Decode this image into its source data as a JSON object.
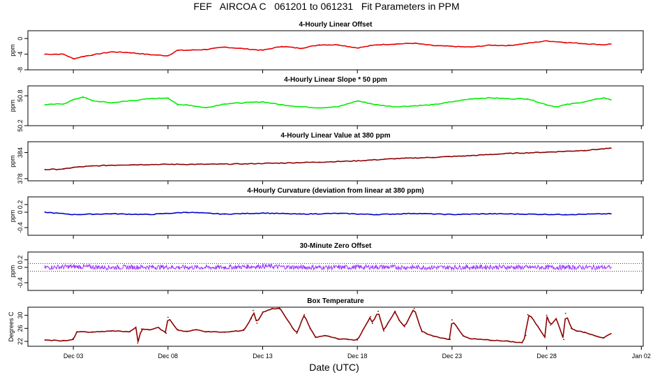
{
  "figure_title": "FEF   AIRCOA C   061201 to 061231   Fit Parameters in PPM",
  "xlabel": "Date (UTC)",
  "x_tick_labels": [
    "Dec 03",
    "Dec 08",
    "Dec 13",
    "Dec 18",
    "Dec 23",
    "Dec 28",
    "Jan 02"
  ],
  "colors": {
    "offset": "#e60000",
    "slope": "#00ee00",
    "value": "#8b0000",
    "curvature": "#0000cc",
    "zero": "#9933ff",
    "temp": "#8b0000"
  },
  "chart_data": [
    {
      "type": "line",
      "title": "4-Hourly Linear Offset",
      "ylabel": "ppm",
      "ylim": [
        -8,
        2
      ],
      "yticks": [
        -8,
        -4,
        0
      ],
      "ytick_labels": [
        "-8",
        "-4",
        "0"
      ],
      "x": [
        "Dec 01.5",
        "Dec 02.5",
        "Dec 03",
        "Dec 03.5",
        "Dec 04",
        "Dec 05",
        "Dec 06",
        "Dec 07",
        "Dec 08",
        "Dec 08.5",
        "Dec 09",
        "Dec 10",
        "Dec 11",
        "Dec 12",
        "Dec 13",
        "Dec 14",
        "Dec 15",
        "Dec 16",
        "Dec 17",
        "Dec 18",
        "Dec 19",
        "Dec 20",
        "Dec 21",
        "Dec 22",
        "Dec 23",
        "Dec 24",
        "Dec 25",
        "Dec 26",
        "Dec 27",
        "Dec 28",
        "Dec 29",
        "Dec 30",
        "Dec 31",
        "Dec 31.4"
      ],
      "xn": [
        1.5,
        2.5,
        3,
        3.5,
        4,
        5,
        6,
        7,
        8,
        8.5,
        9,
        10,
        11,
        12,
        13,
        14,
        15,
        16,
        17,
        18,
        19,
        20,
        21,
        22,
        23,
        24,
        25,
        26,
        27,
        28,
        29,
        30,
        31,
        31.4
      ],
      "y": [
        -4.0,
        -4.0,
        -5.2,
        -4.6,
        -4.2,
        -3.4,
        -3.6,
        -4.1,
        -4.4,
        -3.0,
        -3.0,
        -2.8,
        -2.2,
        -2.6,
        -3.0,
        -2.0,
        -2.5,
        -1.6,
        -1.6,
        -2.4,
        -1.6,
        -1.4,
        -1.2,
        -1.8,
        -2.0,
        -2.2,
        -1.7,
        -1.8,
        -1.2,
        -0.6,
        -1.0,
        -1.3,
        -1.6,
        -1.4
      ],
      "color_key": "offset"
    },
    {
      "type": "line",
      "title": "4-Hourly Linear Slope * 50 ppm",
      "ylabel": "ppm",
      "ylim": [
        50.2,
        51.0
      ],
      "yticks": [
        50.2,
        50.8
      ],
      "ytick_labels": [
        "50.2",
        "50.8"
      ],
      "xn": [
        1.5,
        2.5,
        3,
        3.5,
        4,
        5,
        6,
        7,
        8,
        8.5,
        9,
        10,
        11,
        12,
        13,
        14,
        15,
        16,
        17,
        18,
        19,
        20,
        21,
        22,
        23,
        24,
        25,
        26,
        27,
        28,
        28.5,
        29,
        30,
        31,
        31.4
      ],
      "y": [
        50.62,
        50.64,
        50.72,
        50.78,
        50.7,
        50.66,
        50.7,
        50.74,
        50.76,
        50.62,
        50.62,
        50.56,
        50.64,
        50.66,
        50.68,
        50.62,
        50.58,
        50.56,
        50.58,
        50.7,
        50.62,
        50.58,
        50.6,
        50.62,
        50.68,
        50.74,
        50.76,
        50.74,
        50.74,
        50.62,
        50.58,
        50.62,
        50.68,
        50.76,
        50.72
      ],
      "color_key": "slope"
    },
    {
      "type": "line",
      "title": "4-Hourly Linear Value at 380 ppm",
      "ylabel": "ppm",
      "ylim": [
        377.5,
        386.5
      ],
      "yticks": [
        378,
        384
      ],
      "ytick_labels": [
        "378",
        "384"
      ],
      "xn": [
        1.5,
        2.5,
        3,
        4,
        5,
        6,
        8,
        10,
        12,
        14,
        16,
        18,
        20,
        22,
        24,
        26,
        28,
        30,
        31.4
      ],
      "y": [
        380.1,
        380.2,
        380.6,
        380.9,
        381.1,
        381.2,
        381.3,
        381.3,
        381.4,
        381.6,
        381.8,
        382.1,
        382.6,
        382.9,
        383.3,
        383.8,
        384.1,
        384.5,
        385.0
      ],
      "color_key": "value"
    },
    {
      "type": "line",
      "title": "4-Hourly Curvature (deviation from linear at 380 ppm)",
      "ylabel": "ppm",
      "ylim": [
        -0.6,
        0.4
      ],
      "yticks": [
        -0.4,
        0,
        0.2
      ],
      "ytick_labels": [
        "-0.4",
        "0",
        "0.2"
      ],
      "xn": [
        1.5,
        3,
        5,
        7,
        9,
        11,
        13,
        15,
        17,
        19,
        21,
        23,
        25,
        27,
        29,
        31.4
      ],
      "y": [
        0.0,
        -0.06,
        -0.04,
        -0.06,
        0.0,
        -0.05,
        -0.02,
        -0.05,
        -0.03,
        -0.06,
        -0.03,
        -0.06,
        -0.04,
        -0.05,
        -0.06,
        -0.04
      ],
      "color_key": "curvature"
    },
    {
      "type": "line",
      "title": "30-Minute Zero Offset",
      "ylabel": "ppm",
      "ylim": [
        -0.6,
        0.4
      ],
      "yticks": [
        -0.4,
        0,
        0.2
      ],
      "ytick_labels": [
        "-0.4",
        "0",
        "0.2"
      ],
      "reference_lines": [
        0.1,
        -0.1
      ],
      "xn": [
        1.5,
        3,
        5,
        7,
        9,
        11,
        13,
        15,
        17,
        19,
        21,
        23,
        25,
        27,
        29,
        31.4
      ],
      "y": [
        0.0,
        0.02,
        0.0,
        0.01,
        0.0,
        0.0,
        0.03,
        0.0,
        0.0,
        0.01,
        0.0,
        0.0,
        0.01,
        0.0,
        0.0,
        0.0
      ],
      "noise_amplitude": 0.12,
      "color_key": "zero"
    },
    {
      "type": "line",
      "title": "Box Temperature",
      "ylabel": "Degrees C",
      "ylim": [
        20.5,
        32.5
      ],
      "yticks": [
        22,
        26,
        30
      ],
      "ytick_labels": [
        "22",
        "26",
        "30"
      ],
      "xn": [
        1.5,
        2.5,
        3.0,
        3.2,
        4.0,
        5.0,
        6.0,
        6.3,
        6.4,
        6.6,
        7.0,
        7.5,
        7.9,
        8.0,
        8.5,
        9.0,
        9.5,
        10.0,
        11.0,
        12.0,
        12.4,
        12.5,
        12.7,
        13.0,
        13.5,
        13.9,
        14.6,
        14.8,
        15.2,
        15.5,
        15.8,
        16.3,
        17.0,
        17.5,
        18.0,
        18.7,
        18.8,
        19.1,
        19.4,
        19.6,
        20.0,
        20.2,
        20.5,
        20.9,
        21.0,
        21.4,
        21.6,
        22.0,
        22.9,
        23.0,
        23.3,
        23.6,
        24.0,
        25.0,
        26.0,
        26.7,
        26.9,
        27.0,
        27.2,
        27.9,
        28.0,
        28.2,
        28.5,
        28.9,
        29.0,
        29.3,
        29.6,
        30.0,
        30.5,
        31.0,
        31.4
      ],
      "y": [
        22.4,
        22.2,
        22.6,
        25.0,
        24.8,
        25.2,
        25.0,
        26.2,
        21.5,
        25.8,
        25.6,
        26.2,
        24.5,
        29.4,
        25.5,
        25.0,
        25.6,
        25.0,
        24.8,
        25.4,
        29.0,
        31.5,
        27.6,
        31.0,
        32.0,
        32.2,
        26.0,
        24.5,
        30.2,
        26.0,
        23.2,
        23.8,
        22.8,
        22.6,
        22.4,
        29.6,
        27.5,
        31.2,
        25.2,
        27.6,
        31.2,
        28.6,
        26.5,
        31.0,
        32.0,
        25.0,
        24.6,
        23.6,
        22.6,
        28.6,
        26.0,
        23.6,
        22.8,
        22.4,
        22.0,
        21.6,
        23.8,
        30.2,
        29.4,
        23.4,
        30.0,
        27.0,
        29.0,
        22.6,
        30.6,
        26.0,
        25.2,
        24.8,
        23.8,
        23.0,
        24.4
      ],
      "color_key": "temp"
    }
  ]
}
